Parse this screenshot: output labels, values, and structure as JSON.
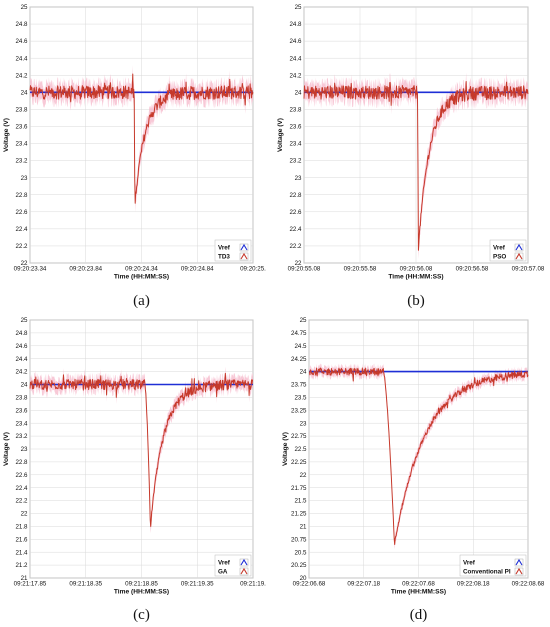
{
  "colors": {
    "vref": "#1f2fd6",
    "controller": "#c6392b",
    "band": "#f6b7c9",
    "grid": "#d9d9d9",
    "frame": "#9a9a9a"
  },
  "chart_data": [
    {
      "type": "line",
      "caption": "(a)",
      "xlabel": "Time (HH:MM:SS)",
      "ylabel": "Voltage (V)",
      "xticks": [
        "09:20:23.34",
        "09:20:23.84",
        "09:20:24.34",
        "09:20:24.84",
        "09:20:25."
      ],
      "yticks": [
        "25",
        "24.8",
        "24.6",
        "24.4",
        "24.2",
        "24",
        "23.8",
        "23.6",
        "23.4",
        "23.2",
        "23",
        "22.8",
        "22.6",
        "22.4",
        "22.2",
        "22"
      ],
      "ylim": [
        22,
        25
      ],
      "xlim_s": [
        0,
        2
      ],
      "series": [
        {
          "name": "Vref",
          "values_V": 24.0
        },
        {
          "name": "TD3",
          "nominal_V": 24.0,
          "ripple_V": 0.08,
          "dip_time_s": 0.94,
          "dip_min_V": 22.7,
          "recovery_time_s": 0.3
        }
      ],
      "legend": [
        "Vref",
        "TD3"
      ],
      "legend_position": "bottom-right"
    },
    {
      "type": "line",
      "caption": "(b)",
      "xlabel": "Time (HH:MM:SS)",
      "ylabel": "Voltage (V)",
      "xticks": [
        "09:20:55.08",
        "09:20:55.58",
        "09:20:56.08",
        "09:20:56.58",
        "09:20:57.08"
      ],
      "yticks": [
        "25",
        "24.8",
        "24.6",
        "24.4",
        "24.2",
        "24",
        "23.8",
        "23.6",
        "23.4",
        "23.2",
        "23",
        "22.8",
        "22.6",
        "22.4",
        "22.2",
        "22"
      ],
      "ylim": [
        22,
        25
      ],
      "xlim_s": [
        0,
        2
      ],
      "series": [
        {
          "name": "Vref",
          "values_V": 24.0
        },
        {
          "name": "PSO",
          "nominal_V": 24.0,
          "ripple_V": 0.08,
          "dip_time_s": 1.02,
          "dip_min_V": 22.15,
          "recovery_time_s": 0.32
        }
      ],
      "legend": [
        "Vref",
        "PSO"
      ],
      "legend_position": "bottom-right"
    },
    {
      "type": "line",
      "caption": "(c)",
      "xlabel": "Time (HH:MM:SS)",
      "ylabel": "Voltage (V)",
      "xticks": [
        "09:21:17.85",
        "09:21:18.35",
        "09:21:18.85",
        "09:21:19.35",
        "09:21:19."
      ],
      "yticks": [
        "25",
        "24.8",
        "24.6",
        "24.4",
        "24.2",
        "24",
        "23.8",
        "23.6",
        "23.4",
        "23.2",
        "23",
        "22.8",
        "22.6",
        "22.4",
        "22.2",
        "22",
        "21.8",
        "21.6",
        "21.4",
        "21.2",
        "21"
      ],
      "ylim": [
        21,
        25
      ],
      "xlim_s": [
        0,
        2
      ],
      "series": [
        {
          "name": "Vref",
          "values_V": 24.0
        },
        {
          "name": "GA",
          "nominal_V": 24.0,
          "ripple_V": 0.08,
          "dip_start_s": 1.03,
          "dip_time_s": 1.08,
          "dip_min_V": 21.8,
          "recovery_time_s": 0.38
        }
      ],
      "legend": [
        "Vref",
        "GA"
      ],
      "legend_position": "bottom-right"
    },
    {
      "type": "line",
      "caption": "(d)",
      "xlabel": "Time (HH:MM:SS)",
      "ylabel": "Voltage (V)",
      "xticks": [
        "09:22:06.68",
        "09:22:07.18",
        "09:22:07.68",
        "09:22:08.18",
        "09:22:08.68"
      ],
      "yticks": [
        "25",
        "24.75",
        "24.5",
        "24.25",
        "24",
        "23.75",
        "23.5",
        "23.25",
        "23",
        "22.75",
        "22.5",
        "22.25",
        "22",
        "21.75",
        "21.5",
        "21.25",
        "21",
        "20.75",
        "20.5",
        "20.25",
        "20"
      ],
      "ylim": [
        20,
        25
      ],
      "xlim_s": [
        0,
        2
      ],
      "series": [
        {
          "name": "Vref",
          "values_V": 24.0
        },
        {
          "name": "Conventional PI",
          "nominal_V": 24.0,
          "ripple_V": 0.07,
          "dip_start_s": 0.68,
          "dip_time_s": 0.78,
          "dip_min_V": 20.65,
          "recovery_time_s": 0.9
        }
      ],
      "legend": [
        "Vref",
        "Conventional PI"
      ],
      "legend_position": "bottom-right"
    }
  ]
}
